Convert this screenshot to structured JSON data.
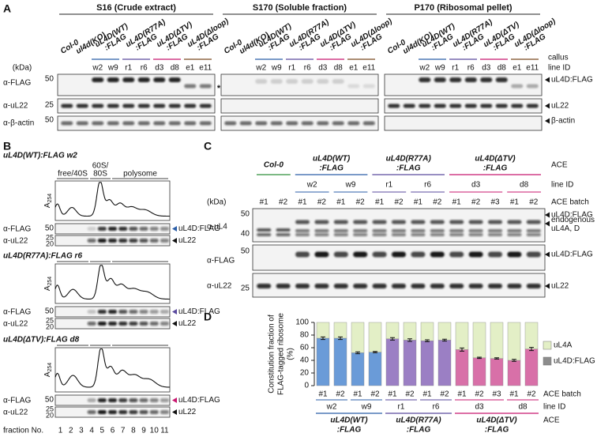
{
  "genotypes": [
    {
      "lines": [
        "Col-0"
      ],
      "color": "#2f8f3a"
    },
    {
      "lines": [
        "ul4d(KO)"
      ],
      "color": "#222222"
    },
    {
      "lines": [
        "uL4D(WT)",
        ":FLAG"
      ],
      "color": "#2b5ea8"
    },
    {
      "lines": [
        "uL4D(R77A)",
        ":FLAG"
      ],
      "color": "#5a4a9e"
    },
    {
      "lines": [
        "uL4D(ΔTV)",
        ":FLAG"
      ],
      "color": "#c8176f"
    },
    {
      "lines": [
        "uL4D(Δloop)",
        ":FLAG"
      ],
      "color": "#7b4b22"
    }
  ],
  "line_ids": [
    "w2",
    "w9",
    "r1",
    "r6",
    "d3",
    "d8",
    "e1",
    "e11"
  ],
  "panel_a": {
    "label": "A",
    "fractions": [
      "S16 (Crude extract)",
      "S170 (Soluble fraction)",
      "P170 (Ribosomal pellet)"
    ],
    "callus": "callus",
    "line_id": "line ID",
    "kda": "(kDa)",
    "asterisk": "*",
    "rows": [
      {
        "antibody": "α-FLAG",
        "marker": 50,
        "target": "uL4D:FLAG"
      },
      {
        "antibody": "α-uL22",
        "marker": 25,
        "target": "uL22"
      },
      {
        "antibody": "α-β-actin",
        "marker": 50,
        "target": "β-actin"
      }
    ]
  },
  "panel_b": {
    "label": "B",
    "fraction_headers": [
      [
        "free/40S"
      ],
      [
        "60S/",
        "80S"
      ],
      [
        "polysome"
      ]
    ],
    "absorbance": "A",
    "absorbance_sub": "254",
    "subpanels": [
      {
        "title": "uL4D(WT):FLAG w2"
      },
      {
        "title": "uL4D(R77A):FLAG r6"
      },
      {
        "title": "uL4D(ΔTV):FLAG d8"
      }
    ],
    "rows": [
      {
        "antibody": "α-FLAG",
        "markers": [
          50
        ],
        "target": "uL4D:FLAG"
      },
      {
        "antibody": "α-uL22",
        "markers": [
          25,
          20
        ],
        "target": "uL22"
      }
    ],
    "fraction_axis": "fraction No.",
    "fractions": [
      1,
      2,
      3,
      4,
      5,
      6,
      7,
      8,
      9,
      10,
      11
    ]
  },
  "panel_c": {
    "label": "C",
    "ace": "ACE",
    "line_id": "line ID",
    "ace_batch": "ACE batch",
    "kda": "(kDa)",
    "batches": [
      "#1",
      "#2",
      "#1",
      "#2",
      "#1",
      "#2",
      "#1",
      "#2",
      "#1",
      "#2",
      "#1",
      "#2",
      "#3",
      "#1",
      "#2"
    ],
    "rows": [
      {
        "antibody": "α-uL4",
        "markers": [
          50,
          40
        ],
        "targets": [
          [
            "uL4D:FLAG"
          ],
          [
            "endogenous",
            "uL4A, D"
          ]
        ]
      },
      {
        "antibody": "α-FLAG",
        "markers": [
          50
        ],
        "targets": [
          [
            "uL4D:FLAG"
          ]
        ]
      },
      {
        "antibody": "α-uL22",
        "markers": [
          25
        ],
        "targets": [
          [
            "uL22"
          ]
        ]
      }
    ]
  },
  "chart_data": {
    "type": "stacked_bar",
    "label": "D",
    "ylabel": [
      "Constitution fraction of",
      "FLAG-tagged ribosome",
      "(%)"
    ],
    "categories": [
      "#1",
      "#2",
      "#1",
      "#2",
      "#1",
      "#2",
      "#1",
      "#2",
      "#1",
      "#2",
      "#3",
      "#1",
      "#2"
    ],
    "series": [
      {
        "name": "uL4D:FLAG",
        "color": "#8c8c8c",
        "bar_colors": [
          "#6a9bd8",
          "#6a9bd8",
          "#6a9bd8",
          "#6a9bd8",
          "#9b7fc4",
          "#9b7fc4",
          "#9b7fc4",
          "#9b7fc4",
          "#d870a8",
          "#d870a8",
          "#d870a8",
          "#d870a8",
          "#d870a8"
        ],
        "values": [
          75,
          75,
          52,
          53,
          74,
          72,
          71,
          72,
          57,
          44,
          43,
          40,
          58
        ],
        "errors": [
          2,
          2,
          1.5,
          1,
          2,
          2,
          1.5,
          1.5,
          2.5,
          1,
          1,
          1.5,
          2.5
        ]
      },
      {
        "name": "uL4A",
        "color": "#e3efc6",
        "values": [
          25,
          25,
          48,
          47,
          26,
          28,
          29,
          28,
          43,
          56,
          57,
          60,
          42
        ]
      }
    ],
    "ylim": [
      0,
      100
    ],
    "yticks": [
      0,
      20,
      40,
      60,
      80,
      100
    ],
    "legend": "right"
  }
}
